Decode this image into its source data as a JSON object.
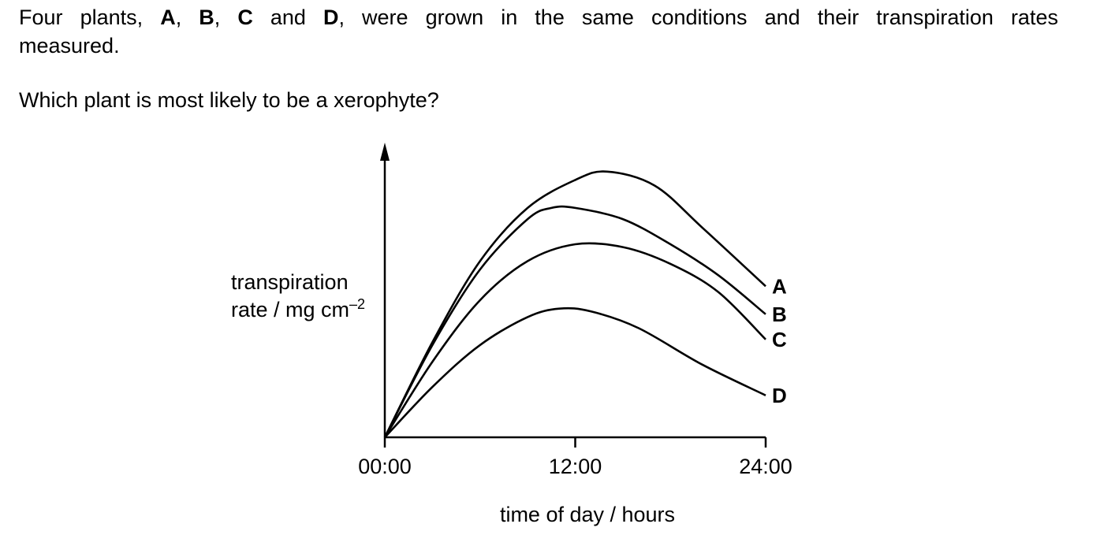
{
  "question": {
    "parts": [
      "Four plants, ",
      "A",
      ", ",
      "B",
      ", ",
      "C",
      " and ",
      "D",
      ", were grown in the same conditions and their transpiration rates"
    ],
    "line2": "measured.",
    "prompt": "Which plant is most likely to be a xerophyte?"
  },
  "chart_data": {
    "type": "line",
    "xlabel": "time of day / hours",
    "ylabel_line1": "transpiration",
    "ylabel_line2": "rate / mg cm",
    "ylabel_sup": "–2",
    "x_ticks": [
      "00:00",
      "12:00",
      "24:00"
    ],
    "x_tick_values": [
      0,
      12,
      24
    ],
    "xlim": [
      0,
      24
    ],
    "ylim": [
      0,
      10
    ],
    "y_ticks": [],
    "grid": false,
    "series": [
      {
        "name": "A",
        "x": [
          0,
          3,
          6,
          9,
          12,
          14,
          17,
          20,
          24
        ],
        "y": [
          0,
          3.4,
          6.3,
          8.2,
          9.2,
          9.5,
          9.0,
          7.5,
          5.4
        ]
      },
      {
        "name": "B",
        "x": [
          0,
          3,
          6,
          9,
          10.5,
          12,
          15,
          18,
          21,
          24
        ],
        "y": [
          0,
          3.3,
          6.0,
          7.8,
          8.2,
          8.2,
          7.8,
          6.9,
          5.8,
          4.4
        ]
      },
      {
        "name": "C",
        "x": [
          0,
          3,
          6,
          9,
          12,
          15,
          18,
          21,
          24
        ],
        "y": [
          0,
          2.7,
          4.9,
          6.3,
          6.9,
          6.8,
          6.2,
          5.2,
          3.5
        ]
      },
      {
        "name": "D",
        "x": [
          0,
          3,
          6,
          9,
          11,
          13,
          16,
          20,
          24
        ],
        "y": [
          0,
          1.8,
          3.3,
          4.3,
          4.6,
          4.5,
          3.9,
          2.6,
          1.5
        ]
      }
    ]
  }
}
